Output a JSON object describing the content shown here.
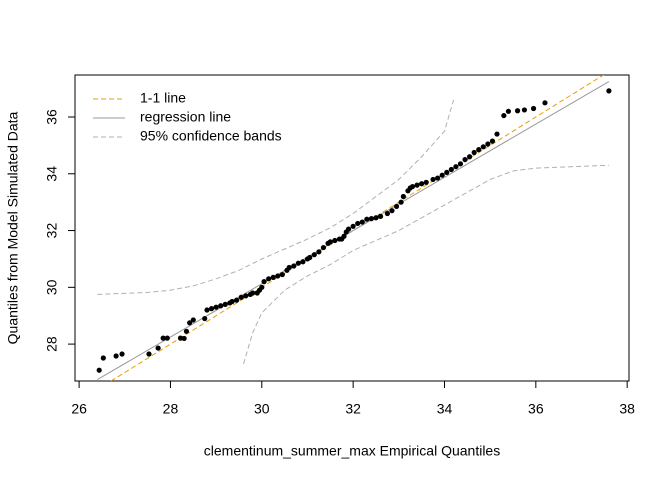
{
  "chart_data": {
    "type": "scatter",
    "xlabel": "clementinum_summer_max Empirical Quantiles",
    "ylabel": "Quantiles from Model Simulated Data",
    "xlim": [
      25.91,
      38.04
    ],
    "ylim": [
      26.7,
      37.48
    ],
    "xticks": [
      26,
      28,
      30,
      32,
      34,
      36,
      38
    ],
    "yticks": [
      28,
      30,
      32,
      34,
      36
    ],
    "legend": "topleft",
    "points": {
      "color": "#000000",
      "x": [
        26.44,
        26.53,
        26.81,
        26.94,
        27.53,
        27.73,
        27.84,
        27.93,
        28.22,
        28.3,
        28.35,
        28.42,
        28.5,
        28.75,
        28.8,
        28.9,
        29.0,
        29.1,
        29.2,
        29.3,
        29.35,
        29.45,
        29.55,
        29.65,
        29.75,
        29.8,
        29.9,
        29.95,
        30.0,
        30.05,
        30.15,
        30.25,
        30.35,
        30.45,
        30.55,
        30.6,
        30.7,
        30.8,
        30.9,
        31.0,
        31.05,
        31.15,
        31.25,
        31.35,
        31.45,
        31.5,
        31.6,
        31.7,
        31.75,
        31.8,
        31.85,
        31.9,
        32.0,
        32.1,
        32.2,
        32.3,
        32.4,
        32.5,
        32.6,
        32.75,
        32.85,
        32.95,
        33.05,
        33.1,
        33.2,
        33.25,
        33.3,
        33.4,
        33.5,
        33.6,
        33.75,
        33.85,
        33.95,
        34.05,
        34.15,
        34.25,
        34.35,
        34.45,
        34.55,
        34.65,
        34.75,
        34.85,
        34.95,
        35.05,
        35.15,
        35.3,
        35.4,
        35.6,
        35.75,
        35.95,
        36.2,
        37.6
      ],
      "y": [
        27.08,
        27.51,
        27.58,
        27.65,
        27.65,
        27.86,
        28.21,
        28.21,
        28.21,
        28.2,
        28.45,
        28.75,
        28.85,
        28.9,
        29.2,
        29.25,
        29.3,
        29.35,
        29.4,
        29.45,
        29.5,
        29.55,
        29.65,
        29.7,
        29.75,
        29.8,
        29.8,
        29.9,
        30.0,
        30.2,
        30.3,
        30.35,
        30.4,
        30.45,
        30.6,
        30.7,
        30.75,
        30.85,
        30.9,
        31.0,
        31.05,
        31.15,
        31.25,
        31.4,
        31.55,
        31.6,
        31.65,
        31.7,
        31.7,
        31.8,
        31.95,
        32.05,
        32.15,
        32.25,
        32.3,
        32.4,
        32.42,
        32.45,
        32.5,
        32.6,
        32.7,
        32.85,
        33.0,
        33.2,
        33.4,
        33.5,
        33.55,
        33.6,
        33.65,
        33.7,
        33.8,
        33.85,
        33.95,
        34.05,
        34.15,
        34.25,
        34.35,
        34.5,
        34.6,
        34.75,
        34.85,
        34.95,
        35.05,
        35.15,
        35.4,
        36.05,
        36.2,
        36.22,
        36.25,
        36.3,
        36.5,
        36.92
      ]
    },
    "series": [
      {
        "name": "1-1 line",
        "color": "#e69f00",
        "dash": "5,3",
        "x": [
          26.4,
          37.5
        ],
        "y": [
          26.4,
          37.5
        ]
      },
      {
        "name": "regression line",
        "color": "#999999",
        "dash": "none",
        "x": [
          26.4,
          37.6
        ],
        "y": [
          26.75,
          37.25
        ]
      },
      {
        "name": "95% confidence bands",
        "color": "#b0b0b0",
        "dash": "5,3",
        "upper": {
          "x": [
            26.4,
            27.5,
            28.0,
            28.5,
            29.0,
            29.5,
            30.0,
            30.5,
            31.0,
            31.5,
            32.0,
            32.5,
            33.0,
            33.5,
            34.0,
            34.2
          ],
          "y": [
            29.75,
            29.82,
            29.9,
            30.05,
            30.3,
            30.6,
            31.0,
            31.35,
            31.7,
            32.1,
            32.6,
            33.2,
            33.8,
            34.6,
            35.5,
            36.6
          ]
        },
        "lower": {
          "x": [
            29.6,
            29.8,
            30.0,
            30.5,
            31.0,
            31.5,
            32.0,
            32.5,
            33.0,
            33.5,
            34.0,
            34.5,
            35.0,
            35.5,
            36.0,
            37.6
          ],
          "y": [
            27.3,
            28.4,
            29.1,
            29.9,
            30.4,
            30.8,
            31.3,
            31.65,
            32.0,
            32.45,
            32.9,
            33.35,
            33.8,
            34.1,
            34.2,
            34.3
          ]
        }
      }
    ]
  }
}
